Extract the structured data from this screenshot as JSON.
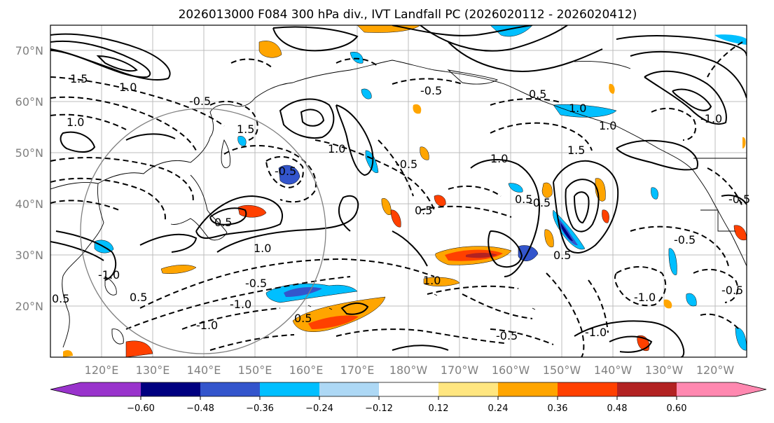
{
  "title": "2026013000 F084 300 hPa div., IVT Landfall PC (2026020112 - 2026020412)",
  "lat_labels": [
    "70°N",
    "60°N",
    "50°N",
    "40°N",
    "30°N",
    "20°N"
  ],
  "lon_labels": [
    "120°E",
    "130°E",
    "140°E",
    "150°E",
    "160°E",
    "170°E",
    "180°W",
    "170°W",
    "160°W",
    "150°W",
    "140°W",
    "130°W",
    "120°W"
  ],
  "colorbar": {
    "colors": [
      "#9933cc",
      "#000080",
      "#3355cc",
      "#00bfff",
      "#add8f5",
      "#ffffff",
      "#ffe680",
      "#ffa500",
      "#ff4000",
      "#b22222",
      "#ff88b0"
    ],
    "tick_labels": [
      "−0.60",
      "−0.48",
      "−0.36",
      "−0.24",
      "−0.12",
      "0.12",
      "0.24",
      "0.36",
      "0.48",
      "0.60"
    ]
  },
  "contour_labels": {
    "c1": "1.0",
    "c2": "-0.5",
    "c3": "1.0",
    "c4": "0.5",
    "c5": "1.5",
    "c6": "0.5",
    "c7": "1.0",
    "c8": "-0.5",
    "c9": "0.5",
    "c10": "-1.0",
    "c11": "-0.5",
    "c12": "1.0",
    "c13": "0.5",
    "c14": "-1.0",
    "c15": "-0.5",
    "c16": "-0.5",
    "c17": "-0.5",
    "c18": "-1.0",
    "c19": "0.5",
    "c20": "-0.5",
    "c21": "1.0",
    "c22": "-1.0",
    "c23": "1.5",
    "c24": "0.5",
    "c25": "1.0",
    "c26": "1.0",
    "c27": "-0.5",
    "c28": "0.5",
    "c29": "-1.0",
    "c30": "0.5",
    "c31": "1.0",
    "c32": "1.5",
    "c33": "-0.5",
    "c34": "-1.0",
    "c35": "-0.5"
  }
}
